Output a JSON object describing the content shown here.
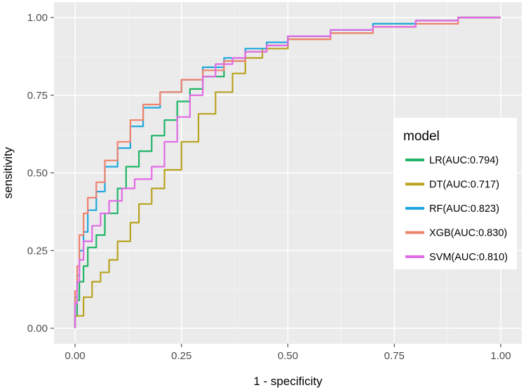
{
  "chart_data": {
    "type": "line",
    "title": "",
    "xlabel": "1 - specificity",
    "ylabel": "sensitivity",
    "xlim": [
      0,
      1
    ],
    "ylim": [
      0,
      1
    ],
    "x_ticks": [
      "0.00",
      "0.25",
      "0.50",
      "0.75",
      "1.00"
    ],
    "y_ticks": [
      "0.00",
      "0.25",
      "0.50",
      "0.75",
      "1.00"
    ],
    "grid": true,
    "legend": {
      "title": "model",
      "position": "right"
    },
    "series": [
      {
        "name": "LR(AUC:0.794)",
        "color": "#20b468",
        "points": [
          [
            0,
            0
          ],
          [
            0.005,
            0.04
          ],
          [
            0.01,
            0.09
          ],
          [
            0.02,
            0.15
          ],
          [
            0.03,
            0.2
          ],
          [
            0.05,
            0.26
          ],
          [
            0.07,
            0.3
          ],
          [
            0.1,
            0.37
          ],
          [
            0.12,
            0.45
          ],
          [
            0.15,
            0.52
          ],
          [
            0.18,
            0.57
          ],
          [
            0.21,
            0.62
          ],
          [
            0.24,
            0.67
          ],
          [
            0.27,
            0.73
          ],
          [
            0.3,
            0.77
          ],
          [
            0.35,
            0.81
          ],
          [
            0.4,
            0.86
          ],
          [
            0.45,
            0.89
          ],
          [
            0.5,
            0.91
          ],
          [
            0.6,
            0.94
          ],
          [
            0.7,
            0.96
          ],
          [
            0.8,
            0.98
          ],
          [
            0.9,
            0.99
          ],
          [
            1,
            1
          ]
        ]
      },
      {
        "name": "DT(AUC:0.717)",
        "color": "#b8a220",
        "points": [
          [
            0,
            0
          ],
          [
            0.02,
            0.04
          ],
          [
            0.04,
            0.1
          ],
          [
            0.06,
            0.15
          ],
          [
            0.08,
            0.18
          ],
          [
            0.1,
            0.22
          ],
          [
            0.13,
            0.28
          ],
          [
            0.15,
            0.34
          ],
          [
            0.18,
            0.4
          ],
          [
            0.21,
            0.45
          ],
          [
            0.25,
            0.51
          ],
          [
            0.29,
            0.6
          ],
          [
            0.33,
            0.69
          ],
          [
            0.37,
            0.76
          ],
          [
            0.4,
            0.82
          ],
          [
            0.44,
            0.87
          ],
          [
            0.5,
            0.9
          ],
          [
            0.6,
            0.93
          ],
          [
            0.7,
            0.95
          ],
          [
            0.8,
            0.97
          ],
          [
            0.9,
            0.99
          ],
          [
            1,
            1
          ]
        ]
      },
      {
        "name": "RF(AUC:0.823)",
        "color": "#1fa8df",
        "points": [
          [
            0,
            0
          ],
          [
            0.005,
            0.1
          ],
          [
            0.01,
            0.17
          ],
          [
            0.02,
            0.25
          ],
          [
            0.03,
            0.31
          ],
          [
            0.05,
            0.38
          ],
          [
            0.07,
            0.44
          ],
          [
            0.1,
            0.52
          ],
          [
            0.13,
            0.58
          ],
          [
            0.16,
            0.65
          ],
          [
            0.2,
            0.71
          ],
          [
            0.25,
            0.76
          ],
          [
            0.3,
            0.8
          ],
          [
            0.35,
            0.84
          ],
          [
            0.4,
            0.87
          ],
          [
            0.45,
            0.9
          ],
          [
            0.5,
            0.92
          ],
          [
            0.6,
            0.94
          ],
          [
            0.7,
            0.96
          ],
          [
            0.8,
            0.98
          ],
          [
            0.9,
            0.99
          ],
          [
            1,
            1
          ]
        ]
      },
      {
        "name": "XGB(AUC:0.830)",
        "color": "#ef826e",
        "points": [
          [
            0,
            0
          ],
          [
            0.005,
            0.12
          ],
          [
            0.01,
            0.2
          ],
          [
            0.02,
            0.3
          ],
          [
            0.03,
            0.37
          ],
          [
            0.05,
            0.42
          ],
          [
            0.07,
            0.47
          ],
          [
            0.1,
            0.54
          ],
          [
            0.13,
            0.6
          ],
          [
            0.16,
            0.67
          ],
          [
            0.2,
            0.72
          ],
          [
            0.25,
            0.76
          ],
          [
            0.3,
            0.8
          ],
          [
            0.35,
            0.83
          ],
          [
            0.4,
            0.86
          ],
          [
            0.45,
            0.89
          ],
          [
            0.5,
            0.91
          ],
          [
            0.6,
            0.93
          ],
          [
            0.7,
            0.95
          ],
          [
            0.8,
            0.97
          ],
          [
            0.9,
            0.98
          ],
          [
            1,
            1
          ]
        ]
      },
      {
        "name": "SVM(AUC:0.810)",
        "color": "#e26ae6",
        "points": [
          [
            0,
            0
          ],
          [
            0.005,
            0.08
          ],
          [
            0.01,
            0.15
          ],
          [
            0.02,
            0.22
          ],
          [
            0.04,
            0.28
          ],
          [
            0.06,
            0.33
          ],
          [
            0.08,
            0.37
          ],
          [
            0.11,
            0.41
          ],
          [
            0.14,
            0.45
          ],
          [
            0.18,
            0.48
          ],
          [
            0.21,
            0.52
          ],
          [
            0.24,
            0.6
          ],
          [
            0.27,
            0.68
          ],
          [
            0.3,
            0.75
          ],
          [
            0.33,
            0.81
          ],
          [
            0.37,
            0.85
          ],
          [
            0.4,
            0.87
          ],
          [
            0.45,
            0.89
          ],
          [
            0.5,
            0.91
          ],
          [
            0.6,
            0.94
          ],
          [
            0.7,
            0.96
          ],
          [
            0.8,
            0.97
          ],
          [
            0.9,
            0.99
          ],
          [
            1,
            1
          ]
        ]
      }
    ]
  }
}
